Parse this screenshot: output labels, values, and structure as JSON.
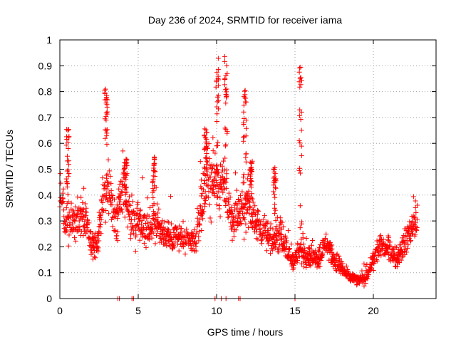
{
  "chart_data": {
    "type": "scatter",
    "title": "Day 236 of 2024, SRMTID for receiver iama",
    "xlabel": "GPS time / hours",
    "ylabel": "SRMTID / TECUs",
    "xlim": [
      0,
      24
    ],
    "ylim": [
      0,
      1
    ],
    "xticks": [
      0,
      5,
      10,
      15,
      20
    ],
    "yticks": [
      0,
      0.1,
      0.2,
      0.3,
      0.4,
      0.5,
      0.6,
      0.7,
      0.8,
      0.9,
      1
    ],
    "xtick_labels": [
      "0",
      "5",
      "10",
      "15",
      "20"
    ],
    "ytick_labels": [
      "0",
      "0.1",
      "0.2",
      "0.3",
      "0.4",
      "0.5",
      "0.6",
      "0.7",
      "0.8",
      "0.9",
      "1"
    ],
    "grid": true,
    "marker": "+",
    "color": "#ff0000",
    "baseline_trend": [
      [
        0.0,
        0.4
      ],
      [
        0.3,
        0.3
      ],
      [
        0.8,
        0.29
      ],
      [
        1.2,
        0.31
      ],
      [
        1.6,
        0.31
      ],
      [
        2.0,
        0.22
      ],
      [
        2.4,
        0.21
      ],
      [
        2.7,
        0.38
      ],
      [
        2.9,
        0.42
      ],
      [
        3.3,
        0.38
      ],
      [
        3.6,
        0.28
      ],
      [
        4.0,
        0.45
      ],
      [
        4.5,
        0.3
      ],
      [
        5.0,
        0.31
      ],
      [
        5.5,
        0.26
      ],
      [
        6.0,
        0.3
      ],
      [
        6.5,
        0.25
      ],
      [
        7.0,
        0.24
      ],
      [
        7.5,
        0.24
      ],
      [
        8.0,
        0.22
      ],
      [
        8.6,
        0.21
      ],
      [
        9.0,
        0.34
      ],
      [
        9.5,
        0.46
      ],
      [
        10.0,
        0.44
      ],
      [
        10.5,
        0.42
      ],
      [
        11.0,
        0.3
      ],
      [
        11.5,
        0.33
      ],
      [
        12.0,
        0.36
      ],
      [
        12.5,
        0.3
      ],
      [
        13.0,
        0.26
      ],
      [
        13.5,
        0.22
      ],
      [
        14.0,
        0.26
      ],
      [
        14.5,
        0.18
      ],
      [
        15.0,
        0.14
      ],
      [
        15.3,
        0.19
      ],
      [
        15.6,
        0.17
      ],
      [
        16.0,
        0.16
      ],
      [
        16.5,
        0.16
      ],
      [
        17.0,
        0.21
      ],
      [
        17.5,
        0.15
      ],
      [
        18.0,
        0.11
      ],
      [
        18.5,
        0.08
      ],
      [
        19.0,
        0.07
      ],
      [
        19.5,
        0.08
      ],
      [
        20.0,
        0.15
      ],
      [
        20.5,
        0.21
      ],
      [
        21.0,
        0.19
      ],
      [
        21.5,
        0.15
      ],
      [
        22.0,
        0.22
      ],
      [
        22.5,
        0.27
      ],
      [
        22.8,
        0.29
      ]
    ],
    "spikes": [
      {
        "x": 0.5,
        "y": 0.66
      },
      {
        "x": 2.95,
        "y": 0.81
      },
      {
        "x": 4.2,
        "y": 0.54
      },
      {
        "x": 6.0,
        "y": 0.55
      },
      {
        "x": 9.3,
        "y": 0.66
      },
      {
        "x": 10.05,
        "y": 0.93
      },
      {
        "x": 10.6,
        "y": 0.95
      },
      {
        "x": 11.8,
        "y": 0.81
      },
      {
        "x": 12.2,
        "y": 0.54
      },
      {
        "x": 13.7,
        "y": 0.51
      },
      {
        "x": 15.35,
        "y": 0.9
      }
    ],
    "zero_points_x": [
      3.7,
      3.8,
      4.6,
      4.7,
      9.9,
      10.3,
      10.6,
      11.4,
      11.5,
      15.0
    ]
  }
}
